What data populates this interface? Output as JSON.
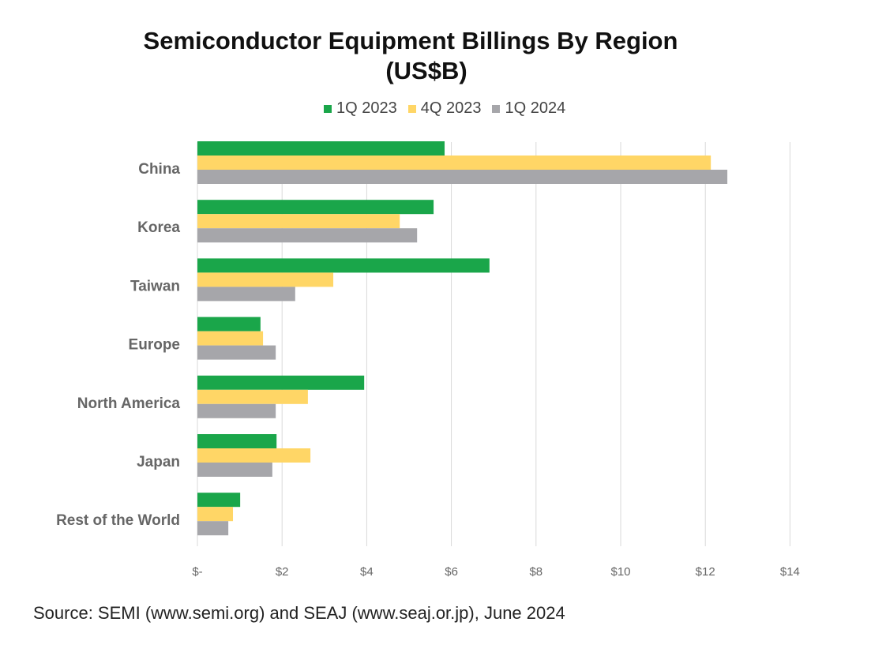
{
  "chart_data": {
    "type": "bar",
    "orientation": "horizontal",
    "title": "Semiconductor Equipment Billings By Region",
    "subtitle": "(US$B)",
    "categories": [
      "China",
      "Korea",
      "Taiwan",
      "Europe",
      "North America",
      "Japan",
      "Rest of the World"
    ],
    "series": [
      {
        "name": "1Q 2023",
        "color": "#1aa64a",
        "values": [
          5.84,
          5.58,
          6.9,
          1.49,
          3.94,
          1.87,
          1.01
        ]
      },
      {
        "name": "4Q 2023",
        "color": "#ffd666",
        "values": [
          12.13,
          4.78,
          3.21,
          1.55,
          2.61,
          2.67,
          0.84
        ]
      },
      {
        "name": "1Q 2024",
        "color": "#a6a6aa",
        "values": [
          12.52,
          5.19,
          2.31,
          1.85,
          1.85,
          1.77,
          0.73
        ]
      }
    ],
    "xticks": [
      0,
      2,
      4,
      6,
      8,
      10,
      12,
      14
    ],
    "xtick_labels": [
      "$-",
      "$2",
      "$4",
      "$6",
      "$8",
      "$10",
      "$12",
      "$14"
    ],
    "xlim": [
      0,
      14
    ],
    "grid": "vertical",
    "legend": "top"
  },
  "source": "Source: SEMI (www.semi.org) and SEAJ (www.seaj.or.jp), June 2024"
}
